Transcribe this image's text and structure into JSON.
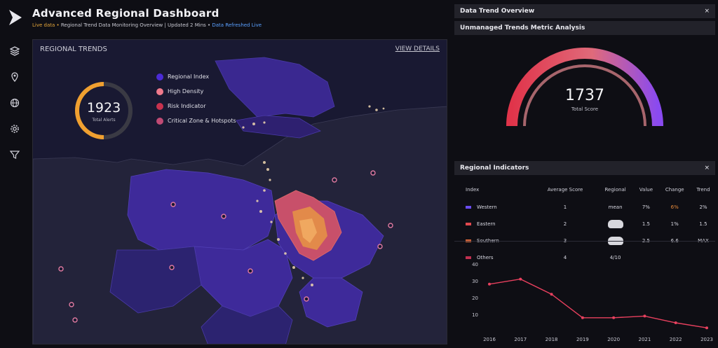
{
  "app": {
    "title": "Advanced Regional Dashboard",
    "subtitle_prefix": "Live data •",
    "subtitle_mid": " Regional Trend Data Monitoring Overview | Updated 2 Mins •",
    "subtitle_link": " Data Refreshed Live"
  },
  "rail": {
    "icons": [
      "layers-icon",
      "pin-icon",
      "globe-icon",
      "settings-icon",
      "filter-icon"
    ]
  },
  "map_panel": {
    "title": "REGIONAL TRENDS",
    "view_link": "VIEW DETAILS",
    "kpi": {
      "value": "1923",
      "label": "Total Alerts"
    },
    "legend": [
      {
        "label": "Regional Index",
        "color": "#4b2bd6"
      },
      {
        "label": "High Density",
        "color": "#f07a8c"
      },
      {
        "label": "Risk Indicator",
        "color": "#c8324e"
      },
      {
        "label": "Critical Zone & Hotspots",
        "color": "#c04a74"
      }
    ]
  },
  "right_panels": {
    "panel1": {
      "title": "Data Trend Overview",
      "close": "×"
    },
    "panel2": {
      "title": "Unmanaged Trends Metric Analysis",
      "gauge": {
        "value": "1737",
        "label": "Total Score",
        "fraction": 0.78
      }
    },
    "panel3": {
      "title": "Regional Indicators",
      "close": "×",
      "columns": [
        "Index",
        "Average Score",
        "Regional",
        "Value",
        "Change",
        "Trend"
      ],
      "rows": [
        {
          "name": "Western",
          "color": "#6a4cf0",
          "score": "1",
          "regional": "mean",
          "value": "7% ",
          "change": "6%",
          "trend": "2%",
          "highlight": true
        },
        {
          "name": "Eastern",
          "color": "#e0484e",
          "score": "2",
          "regional": "",
          "value": "1.5",
          "change": "1%",
          "trend": "1.5",
          "highlight": false
        },
        {
          "name": "Southern",
          "color": "#e26a3a",
          "score": "3",
          "regional": "",
          "value": "2.5",
          "change": "6.6",
          "trend": "MAX",
          "highlight": false
        },
        {
          "name": "Others",
          "color": "#c03050",
          "score": "4",
          "regional": "",
          "value": "4/10",
          "change": "",
          "trend": "",
          "highlight": false
        }
      ]
    }
  },
  "chart_data": {
    "type": "line",
    "x": [
      "2016",
      "2017",
      "2018",
      "2019",
      "2020",
      "2021",
      "2022",
      "2023"
    ],
    "series": [
      {
        "values": [
          28,
          31,
          22,
          8,
          8,
          9,
          5,
          2
        ],
        "color": "#e8405e"
      }
    ],
    "y_ticks": [
      "40",
      "30",
      "20",
      "10"
    ],
    "ylim": [
      0,
      45
    ],
    "xlabel": "",
    "ylabel": "",
    "grid": false
  }
}
